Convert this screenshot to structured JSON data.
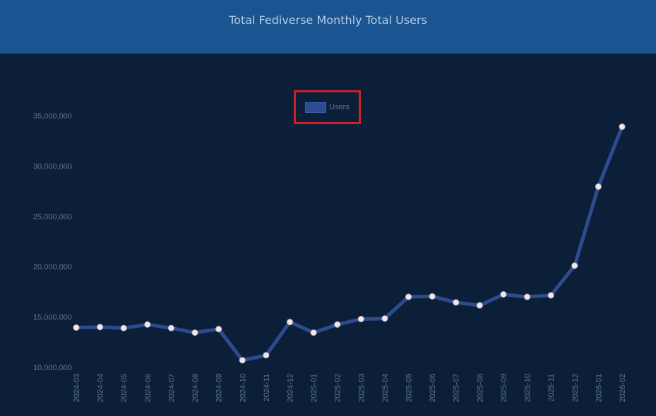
{
  "header": {
    "title": "Total Fediverse Monthly Total Users"
  },
  "legend": {
    "label": "Users",
    "highlight_color": "#d01f2a"
  },
  "colors": {
    "header_bg": "#1a5491",
    "page_bg": "#0b2038",
    "line": "#2d4c8f",
    "point_fill": "#f2e8ec",
    "tick_text": "#5d7395"
  },
  "chart_data": {
    "type": "line",
    "title": "Total Fediverse Monthly Total Users",
    "xlabel": "",
    "ylabel": "",
    "ylim": [
      10000000,
      35000000
    ],
    "yticks": [
      10000000,
      15000000,
      20000000,
      25000000,
      30000000,
      35000000
    ],
    "ytick_labels": [
      "10,000,000",
      "15,000,000",
      "20,000,000",
      "25,000,000",
      "30,000,000",
      "35,000,000"
    ],
    "grid": false,
    "legend_position": "top-center",
    "x": [
      "2024-03",
      "2024-04",
      "2024-05",
      "2024-06",
      "2024-07",
      "2024-08",
      "2024-09",
      "2024-10",
      "2024-11",
      "2024-12",
      "2025-01",
      "2025-02",
      "2025-03",
      "2025-04",
      "2025-05",
      "2025-06",
      "2025-07",
      "2025-08",
      "2025-09",
      "2025-10",
      "2025-11",
      "2025-12",
      "2026-01",
      "2026-02"
    ],
    "series": [
      {
        "name": "Users",
        "values": [
          13950000,
          14000000,
          13900000,
          14250000,
          13900000,
          13450000,
          13800000,
          10700000,
          11200000,
          14500000,
          13450000,
          14250000,
          14800000,
          14850000,
          17000000,
          17050000,
          16450000,
          16150000,
          17250000,
          17000000,
          17150000,
          20100000,
          27950000,
          33900000
        ]
      }
    ]
  }
}
